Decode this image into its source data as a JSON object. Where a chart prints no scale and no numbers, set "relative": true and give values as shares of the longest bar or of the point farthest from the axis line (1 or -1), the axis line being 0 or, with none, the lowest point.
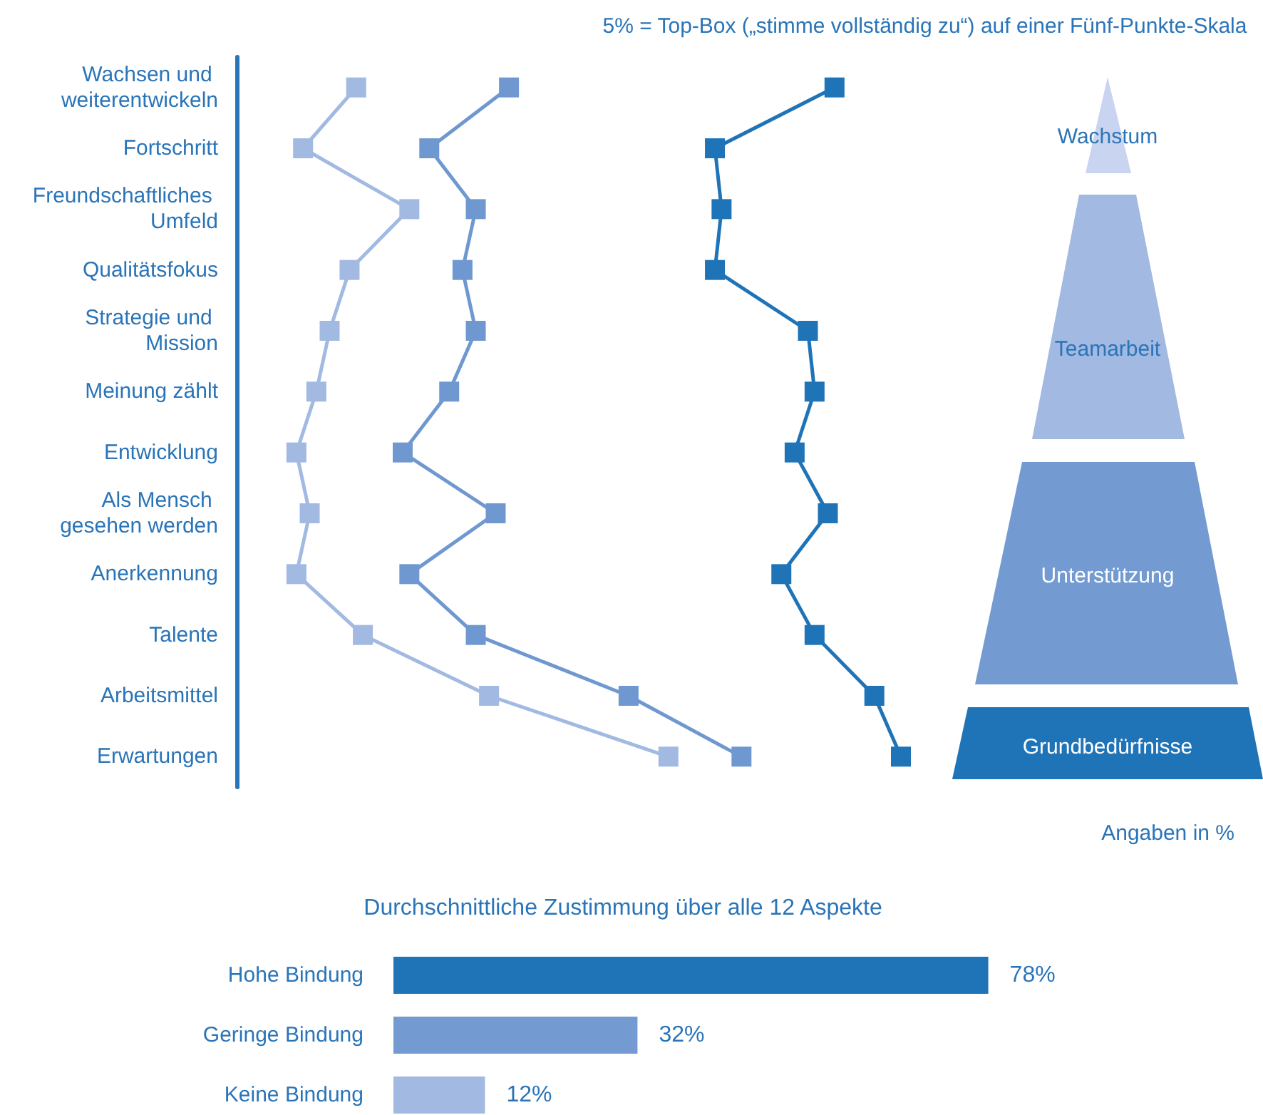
{
  "chart_data": [
    {
      "type": "line",
      "orientation": "horizontal",
      "relative": true,
      "subtitle": "5% = Top-Box („stimme vollständig zu“) auf einer Fünf-Punkte-Skala",
      "categories": [
        "Wachsen und weiterentwickeln",
        "Fortschritt",
        "Freundschaftliches Umfeld",
        "Qualitätsfokus",
        "Strategie und Mission",
        "Meinung zählt",
        "Entwicklung",
        "Als Mensch gesehen werden",
        "Anerkennung",
        "Talente",
        "Arbeitsmittel",
        "Erwartungen"
      ],
      "series": [
        {
          "color": "#a2b9e2",
          "values": [
            0.18,
            0.1,
            0.26,
            0.17,
            0.14,
            0.12,
            0.09,
            0.11,
            0.09,
            0.19,
            0.38,
            0.65
          ]
        },
        {
          "color": "#7098d0",
          "values": [
            0.41,
            0.29,
            0.36,
            0.34,
            0.36,
            0.32,
            0.25,
            0.39,
            0.26,
            0.36,
            0.59,
            0.76
          ]
        },
        {
          "color": "#1f74b8",
          "values": [
            0.9,
            0.72,
            0.73,
            0.72,
            0.86,
            0.87,
            0.84,
            0.89,
            0.82,
            0.87,
            0.96,
            1
          ]
        }
      ],
      "marker": "square",
      "annotations": [
        "Angaben in %"
      ]
    },
    {
      "type": "other",
      "categories": [
        "Wachstum",
        "Teamarbeit",
        "Unterstützung",
        "Grundbedürfnisse"
      ],
      "colors": [
        "#c9d5f0",
        "#a2b9e2",
        "#739bd2",
        "#1f74b8"
      ]
    },
    {
      "type": "bar",
      "orientation": "horizontal",
      "title": "Durchschnittliche Zustimmung über alle 12 Aspekte",
      "categories": [
        "Hohe Bindung",
        "Geringe Bindung",
        "Keine Bindung"
      ],
      "values": [
        78,
        32,
        12
      ],
      "colors": [
        "#1f74b8",
        "#739bd2",
        "#a2b9e2"
      ],
      "value_labels": [
        "78%",
        "32%",
        "12%"
      ],
      "tick_labels": "y"
    }
  ]
}
